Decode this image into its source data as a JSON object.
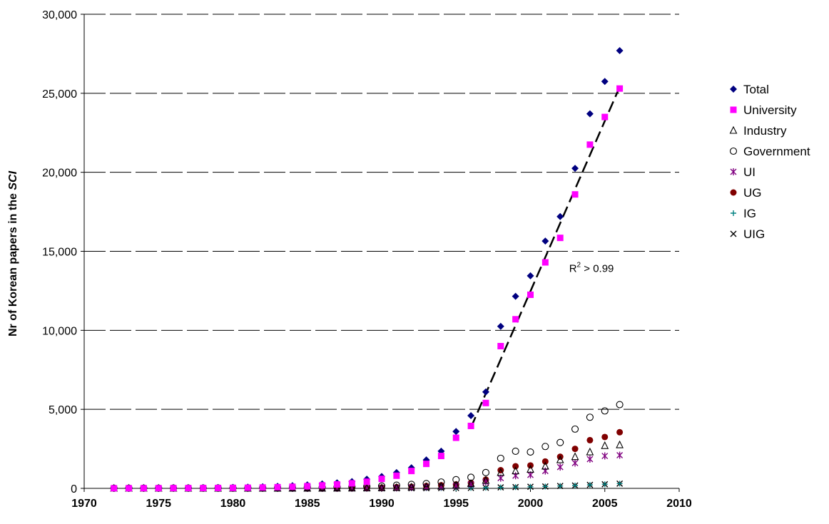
{
  "chart_data": {
    "type": "scatter",
    "ylabel_main": "Nr of Korean papers in the ",
    "ylabel_italic": "SCI",
    "xlim": [
      1970,
      2010
    ],
    "ylim": [
      0,
      30000
    ],
    "x_ticks": [
      1970,
      1975,
      1980,
      1985,
      1990,
      1995,
      2000,
      2005,
      2010
    ],
    "x_tick_labels": [
      "1970",
      "1975",
      "1980",
      "1985",
      "1990",
      "1995",
      "2000",
      "2005",
      "2010"
    ],
    "y_ticks": [
      0,
      5000,
      10000,
      15000,
      20000,
      25000,
      30000
    ],
    "y_tick_labels": [
      "0",
      "5,000",
      "10,000",
      "15,000",
      "20,000",
      "25,000",
      "30,000"
    ],
    "grid": "horizontal dashed",
    "legend_position": "right",
    "x": [
      1972,
      1973,
      1974,
      1975,
      1976,
      1977,
      1978,
      1979,
      1980,
      1981,
      1982,
      1983,
      1984,
      1985,
      1986,
      1987,
      1988,
      1989,
      1990,
      1991,
      1992,
      1993,
      1994,
      1995,
      1996,
      1997,
      1998,
      1999,
      2000,
      2001,
      2002,
      2003,
      2004,
      2005,
      2006
    ],
    "series": [
      {
        "name": "Total",
        "marker": "diamond",
        "color": "#000080",
        "values": [
          10,
          15,
          20,
          25,
          30,
          35,
          40,
          50,
          60,
          80,
          100,
          130,
          170,
          220,
          280,
          350,
          430,
          580,
          750,
          1000,
          1300,
          1800,
          2350,
          3600,
          4600,
          6100,
          10250,
          12150,
          13450,
          15650,
          17200,
          20250,
          23700,
          25750,
          27700
        ]
      },
      {
        "name": "University",
        "marker": "square",
        "color": "#ff00ff",
        "values": [
          5,
          8,
          10,
          12,
          15,
          18,
          20,
          25,
          30,
          40,
          55,
          75,
          100,
          140,
          190,
          250,
          320,
          420,
          600,
          800,
          1100,
          1550,
          2050,
          3200,
          3950,
          5400,
          9000,
          10700,
          12250,
          14300,
          15850,
          18600,
          21750,
          23500,
          25300
        ]
      },
      {
        "name": "Industry",
        "marker": "triangle",
        "color": "#000000",
        "values": [
          0,
          0,
          0,
          0,
          0,
          0,
          0,
          0,
          0,
          0,
          0,
          0,
          0,
          0,
          5,
          8,
          12,
          20,
          30,
          50,
          80,
          100,
          130,
          200,
          300,
          500,
          1000,
          1100,
          1200,
          1400,
          1800,
          2000,
          2300,
          2700,
          2750
        ]
      },
      {
        "name": "Government",
        "marker": "circle-open",
        "color": "#000000",
        "values": [
          10,
          12,
          14,
          16,
          18,
          20,
          22,
          24,
          26,
          30,
          35,
          40,
          50,
          60,
          70,
          80,
          100,
          120,
          150,
          200,
          250,
          300,
          400,
          550,
          700,
          1000,
          1900,
          2350,
          2300,
          2650,
          2900,
          3750,
          4500,
          4900,
          5300
        ]
      },
      {
        "name": "UI",
        "marker": "star",
        "color": "#800080",
        "values": [
          0,
          0,
          0,
          0,
          0,
          0,
          0,
          0,
          0,
          0,
          0,
          0,
          0,
          0,
          0,
          0,
          5,
          10,
          20,
          30,
          50,
          80,
          100,
          150,
          250,
          400,
          650,
          800,
          850,
          1100,
          1350,
          1600,
          1850,
          2050,
          2100
        ]
      },
      {
        "name": "UG",
        "marker": "circle-filled",
        "color": "#800000",
        "values": [
          0,
          0,
          0,
          0,
          0,
          0,
          0,
          0,
          0,
          0,
          0,
          0,
          0,
          0,
          5,
          10,
          20,
          30,
          50,
          80,
          100,
          150,
          200,
          250,
          350,
          550,
          1150,
          1400,
          1450,
          1700,
          2000,
          2500,
          3050,
          3250,
          3550
        ]
      },
      {
        "name": "IG",
        "marker": "plus",
        "color": "#008080",
        "values": [
          0,
          0,
          0,
          0,
          0,
          0,
          0,
          0,
          0,
          0,
          0,
          0,
          0,
          0,
          0,
          0,
          0,
          0,
          0,
          0,
          5,
          10,
          15,
          20,
          30,
          40,
          60,
          80,
          100,
          120,
          150,
          180,
          220,
          260,
          300
        ]
      },
      {
        "name": "UIG",
        "marker": "cross",
        "color": "#000000",
        "values": [
          0,
          0,
          0,
          0,
          0,
          0,
          0,
          0,
          0,
          0,
          0,
          0,
          0,
          0,
          0,
          0,
          0,
          0,
          0,
          0,
          5,
          10,
          15,
          20,
          30,
          40,
          60,
          80,
          100,
          120,
          150,
          180,
          220,
          260,
          300
        ]
      }
    ],
    "trendline": {
      "x": [
        1996,
        2006
      ],
      "y": [
        3850,
        25400
      ],
      "style": "dashed"
    },
    "annotation": {
      "base": "R",
      "superscript": "2",
      "rest": " > 0.99",
      "x": 2002.6,
      "y": 13700
    }
  }
}
